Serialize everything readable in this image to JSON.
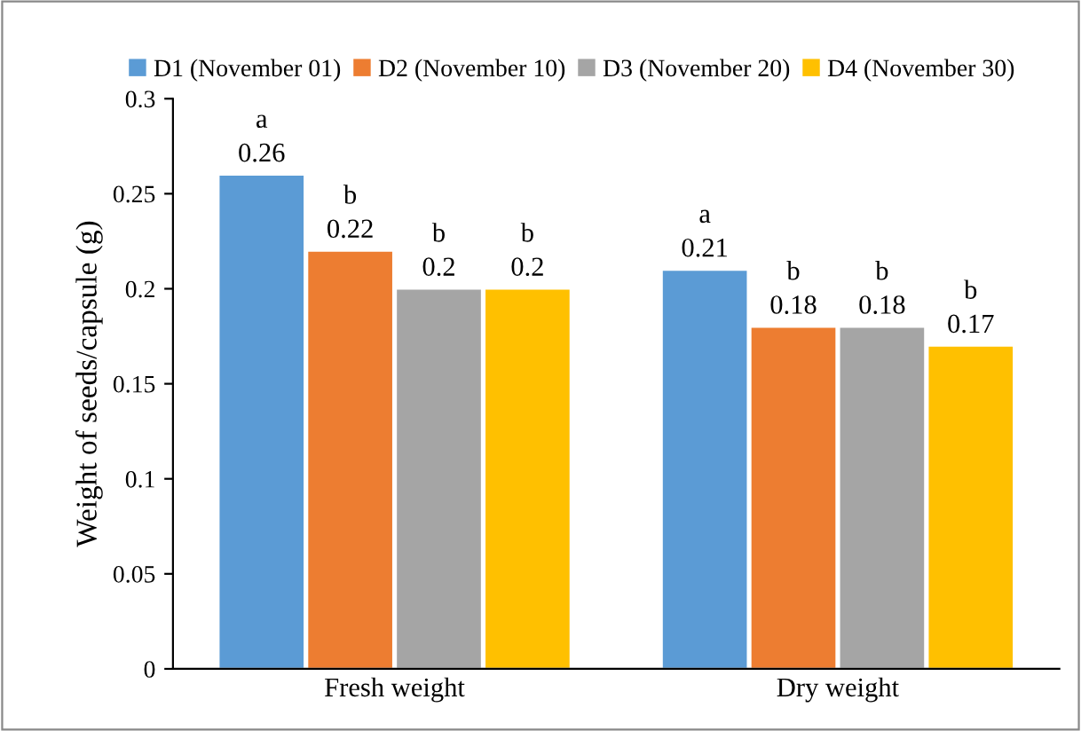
{
  "chart_data": {
    "type": "bar",
    "ylabel": "Weight of seeds/capsule (g)",
    "categories": [
      "Fresh weight",
      "Dry weight"
    ],
    "series": [
      {
        "name": "D1 (November 01)",
        "color": "#5b9bd5",
        "values": [
          0.26,
          0.21
        ],
        "value_labels": [
          "a\n0.26",
          "a\n0.21"
        ]
      },
      {
        "name": "D2 (November 10)",
        "color": "#ed7d31",
        "values": [
          0.22,
          0.18
        ],
        "value_labels": [
          "b\n0.22",
          "b\n0.18"
        ]
      },
      {
        "name": "D3 (November 20)",
        "color": "#a5a5a5",
        "values": [
          0.2,
          0.18
        ],
        "value_labels": [
          "b\n0.2",
          "b\n0.18"
        ]
      },
      {
        "name": "D4 (November 30)",
        "color": "#ffc000",
        "values": [
          0.2,
          0.17
        ],
        "value_labels": [
          "b\n0.2",
          "b\n0.17"
        ]
      }
    ],
    "ylim": [
      0,
      0.3
    ],
    "yticks": [
      0,
      0.05,
      0.1,
      0.15,
      0.2,
      0.25,
      0.3
    ],
    "grid": false,
    "legend": "top"
  }
}
